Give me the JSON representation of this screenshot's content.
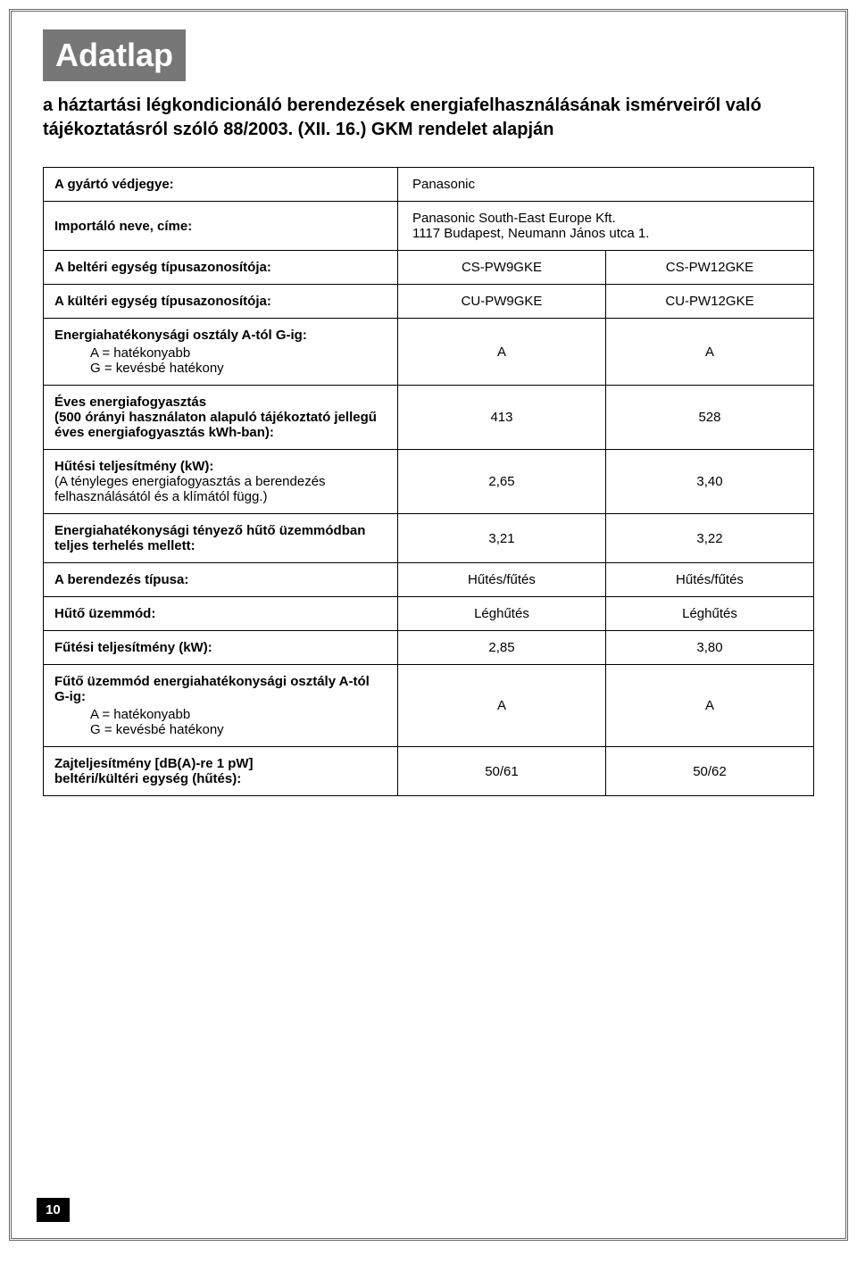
{
  "title": "Adatlap",
  "intro": "a háztartási légkondicionáló berendezések energiafelhasználásának ismérveiről való tájékoztatásról szóló 88/2003. (XII. 16.) GKM rendelet alapján",
  "page_number": "10",
  "rows": {
    "manufacturer": {
      "label": "A gyártó védjegye:",
      "val": "Panasonic"
    },
    "importer": {
      "label": "Importáló neve, címe:",
      "line1": "Panasonic South-East Europe Kft.",
      "line2": "1117 Budapest, Neumann János utca 1."
    },
    "indoor_id": {
      "label": "A beltéri egység típusazonosítója:",
      "col1": "CS-PW9GKE",
      "col2": "CS-PW12GKE"
    },
    "outdoor_id": {
      "label": "A kültéri egység típusazonosítója:",
      "col1": "CU-PW9GKE",
      "col2": "CU-PW12GKE"
    },
    "eff_class": {
      "label": "Energiahatékonysági osztály A-tól G-ig:",
      "sub1": "A = hatékonyabb",
      "sub2": "G = kevésbé hatékony",
      "col1": "A",
      "col2": "A"
    },
    "annual": {
      "label1": "Éves energiafogyasztás",
      "label2": "(500 órányi használaton alapuló tájékoztató jellegű",
      "label3": "éves energiafogyasztás kWh-ban):",
      "col1": "413",
      "col2": "528"
    },
    "cooling_power": {
      "label1": "Hűtési teljesítmény (kW):",
      "label2": "(A tényleges energiafogyasztás a berendezés",
      "label3": "felhasználásától és a klímától függ.)",
      "col1": "2,65",
      "col2": "3,40"
    },
    "eer": {
      "label1": "Energiahatékonysági tényező hűtő üzemmódban",
      "label2": "teljes terhelés mellett:",
      "col1": "3,21",
      "col2": "3,22"
    },
    "type": {
      "label": "A berendezés típusa:",
      "col1": "Hűtés/fűtés",
      "col2": "Hűtés/fűtés"
    },
    "cooling_mode": {
      "label": "Hűtő üzemmód:",
      "col1": "Léghűtés",
      "col2": "Léghűtés"
    },
    "heating_power": {
      "label": "Fűtési teljesítmény (kW):",
      "col1": "2,85",
      "col2": "3,80"
    },
    "heating_class": {
      "label": "Fűtő üzemmód energiahatékonysági osztály A-tól G-ig:",
      "sub1": "A = hatékonyabb",
      "sub2": "G = kevésbé hatékony",
      "col1": "A",
      "col2": "A"
    },
    "noise": {
      "label1": "Zajteljesítmény [dB(A)-re 1 pW]",
      "label2": "beltéri/kültéri egység (hűtés):",
      "col1": "50/61",
      "col2": "50/62"
    }
  }
}
